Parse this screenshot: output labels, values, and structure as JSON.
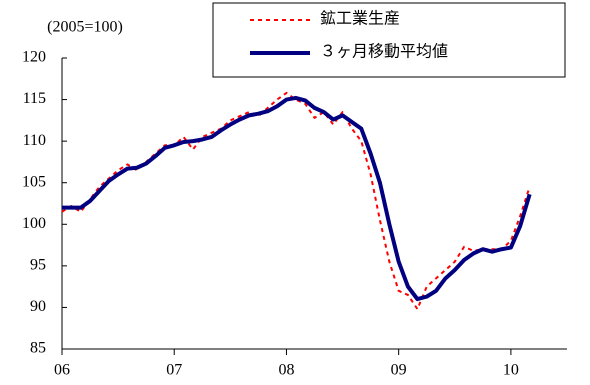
{
  "chart_data": {
    "type": "line",
    "unit_label": "(2005=100)",
    "x": [
      2006.0,
      2006.083,
      2006.167,
      2006.25,
      2006.333,
      2006.417,
      2006.5,
      2006.583,
      2006.667,
      2006.75,
      2006.833,
      2006.917,
      2007.0,
      2007.083,
      2007.167,
      2007.25,
      2007.333,
      2007.417,
      2007.5,
      2007.583,
      2007.667,
      2007.75,
      2007.833,
      2007.917,
      2008.0,
      2008.083,
      2008.167,
      2008.25,
      2008.333,
      2008.417,
      2008.5,
      2008.583,
      2008.667,
      2008.75,
      2008.833,
      2008.917,
      2009.0,
      2009.083,
      2009.167,
      2009.25,
      2009.333,
      2009.417,
      2009.5,
      2009.583,
      2009.667,
      2009.75,
      2009.833,
      2009.917,
      2010.0,
      2010.083,
      2010.167
    ],
    "series": [
      {
        "name": "鉱工業生産",
        "color": "#ff0000",
        "dash": true,
        "values": [
          101.5,
          102.2,
          101.5,
          103,
          104.5,
          105.5,
          106.5,
          107.2,
          106.5,
          107.5,
          108.5,
          109.5,
          109.5,
          110.5,
          109,
          110.5,
          111,
          111.5,
          112.5,
          113,
          113.5,
          113,
          114,
          115,
          115.8,
          115,
          114.5,
          112.8,
          113.5,
          112,
          113.5,
          111.5,
          110,
          106,
          100.5,
          95.5,
          92,
          91.5,
          89.8,
          92.5,
          93.5,
          94.5,
          95.5,
          97.3,
          96.8,
          97,
          97,
          97,
          98,
          101,
          104.5
        ]
      },
      {
        "name": "３ヶ月移動平均値",
        "color": "#000080",
        "dash": false,
        "values": [
          102,
          102,
          102,
          102.8,
          104,
          105.2,
          106,
          106.7,
          106.8,
          107.3,
          108.2,
          109.2,
          109.5,
          109.9,
          110,
          110.2,
          110.5,
          111.3,
          112,
          112.6,
          113.1,
          113.3,
          113.6,
          114.2,
          115,
          115.2,
          114.9,
          114,
          113.5,
          112.6,
          113.1,
          112.3,
          111.5,
          108.5,
          105,
          100,
          95.5,
          92.5,
          91,
          91.3,
          92,
          93.5,
          94.5,
          95.7,
          96.5,
          97,
          96.7,
          97,
          97.2,
          99.8,
          103.6
        ]
      }
    ],
    "xlim": [
      2006,
      2010.5
    ],
    "xticks": [
      {
        "value": 2006,
        "label": "06"
      },
      {
        "value": 2007,
        "label": "07"
      },
      {
        "value": 2008,
        "label": "08"
      },
      {
        "value": 2009,
        "label": "09"
      },
      {
        "value": 2010,
        "label": "10"
      }
    ],
    "ylim": [
      85,
      120
    ],
    "yticks": [
      85,
      90,
      95,
      100,
      105,
      110,
      115,
      120
    ],
    "legend": "upper right"
  }
}
